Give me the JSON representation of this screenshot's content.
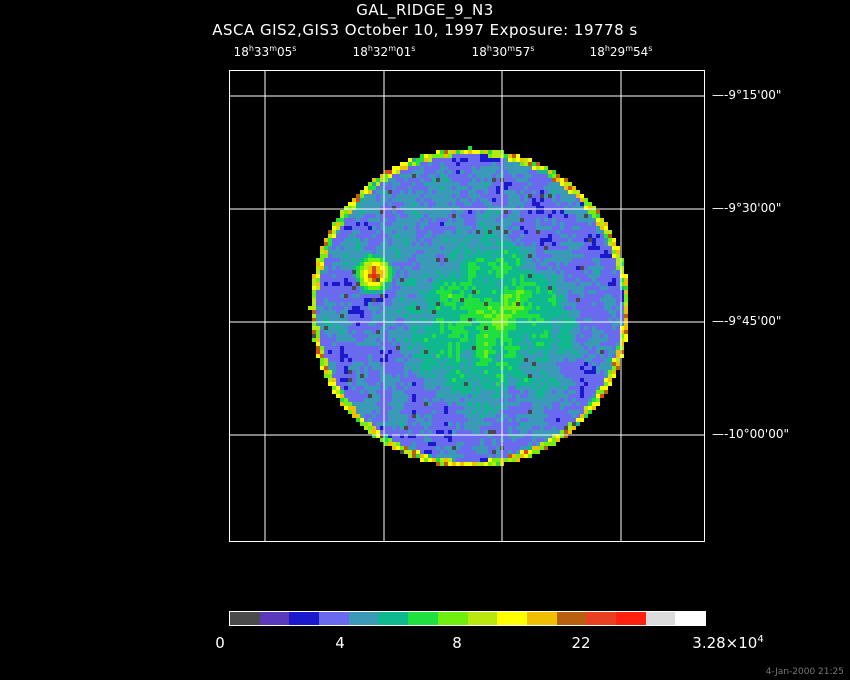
{
  "header": {
    "title": "GAL_RIDGE_9_N3",
    "subtitle": "ASCA GIS2,GIS3 October 10, 1997 Exposure: 19778 s"
  },
  "ra_axis": [
    {
      "h": "18",
      "m": "33",
      "s": "05"
    },
    {
      "h": "18",
      "m": "32",
      "s": "01"
    },
    {
      "h": "18",
      "m": "30",
      "s": "57"
    },
    {
      "h": "18",
      "m": "29",
      "s": "54"
    }
  ],
  "dec_axis": [
    {
      "d": "-9",
      "m": "15",
      "s": "00"
    },
    {
      "d": "-9",
      "m": "30",
      "s": "00"
    },
    {
      "d": "-9",
      "m": "45",
      "s": "00"
    },
    {
      "d": "-10",
      "m": "00",
      "s": "00"
    }
  ],
  "colorbar": {
    "colors": [
      "#4a4a4a",
      "#5a3ab8",
      "#1a1acc",
      "#6a6aee",
      "#3a9ab8",
      "#10b890",
      "#20e040",
      "#70ee10",
      "#b8e810",
      "#ffff00",
      "#f0c000",
      "#b86010",
      "#e84020",
      "#ff2010",
      "#dcdcdc",
      "#ffffff"
    ],
    "labels": [
      {
        "text": "0"
      },
      {
        "text": "4"
      },
      {
        "text": "8"
      },
      {
        "text": "22"
      },
      {
        "text": "3.28×10",
        "exp": "4"
      }
    ]
  },
  "timestamp": "4-Jan-2000 21:25"
}
